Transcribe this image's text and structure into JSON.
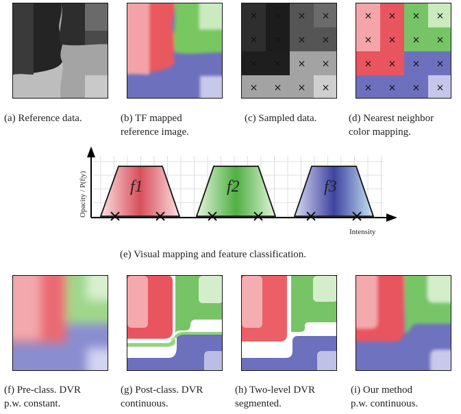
{
  "captions": {
    "a": "(a)  Reference data.",
    "b1": "(b)  TF mapped",
    "b2": "reference image.",
    "c": "(c)  Sampled data.",
    "d1": "(d)  Nearest neighbor",
    "d2": "color mapping.",
    "e": "(e)  Visual mapping and feature classification.",
    "f1": "(f) Pre-class. DVR",
    "f2": "p.w. constant.",
    "g1": "(g) Post-class. DVR",
    "g2": "continuous.",
    "h1": "(h) Two-level DVR",
    "h2": "segmented.",
    "i1": "(i) Our method",
    "i2": "p.w. continuous."
  },
  "chart_labels": {
    "ylabel": "Opacity / P(f|y)",
    "xlabel": "Intensity",
    "features": [
      "f1",
      "f2",
      "f3"
    ]
  },
  "colors": {
    "red": "#e8606a",
    "green": "#6cc25a",
    "blue": "#6468b6",
    "dark": "#1c1c1c"
  },
  "sample_marker": "×"
}
